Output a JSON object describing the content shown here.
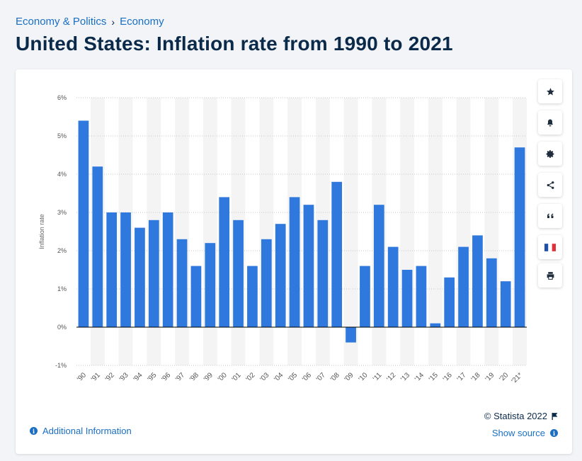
{
  "breadcrumb": {
    "item1": "Economy & Politics",
    "separator": "›",
    "item2": "Economy"
  },
  "title": "United States: Inflation rate from 1990 to 2021",
  "footer": {
    "copyright": "© Statista 2022",
    "show_source": "Show source",
    "additional_info": "Additional Information",
    "info_glyph": "i"
  },
  "toolbar": [
    "star-icon",
    "bell-icon",
    "gear-icon",
    "share-icon",
    "quote-icon",
    "flag-fr-icon",
    "print-icon"
  ],
  "colors": {
    "bar": "#2e78de",
    "link": "#1a6fc4",
    "band": "#f4f4f4",
    "axis": "#000000"
  },
  "chart_data": {
    "type": "bar",
    "ylabel": "Inflation rate",
    "xlabel": "",
    "ylim": [
      -1,
      6
    ],
    "y_ticks": [
      "-1%",
      "0%",
      "1%",
      "2%",
      "3%",
      "4%",
      "5%",
      "6%"
    ],
    "grid": "horizontal dotted",
    "categories": [
      "'90",
      "'91",
      "'92",
      "'93",
      "'94",
      "'95",
      "'96",
      "'97",
      "'98",
      "'99",
      "'00",
      "'01",
      "'02",
      "'03",
      "'04",
      "'05",
      "'06",
      "'07",
      "'08",
      "'09",
      "'10",
      "'11",
      "'12",
      "'13",
      "'14",
      "'15",
      "'16",
      "'17",
      "'18",
      "'19",
      "'20",
      "'21*"
    ],
    "values": [
      5.4,
      4.2,
      3.0,
      3.0,
      2.6,
      2.8,
      3.0,
      2.3,
      1.6,
      2.2,
      3.4,
      2.8,
      1.6,
      2.3,
      2.7,
      3.4,
      3.2,
      2.8,
      3.8,
      -0.4,
      1.6,
      3.2,
      2.1,
      1.5,
      1.6,
      0.1,
      1.3,
      2.1,
      2.4,
      1.8,
      1.2,
      4.7
    ]
  }
}
